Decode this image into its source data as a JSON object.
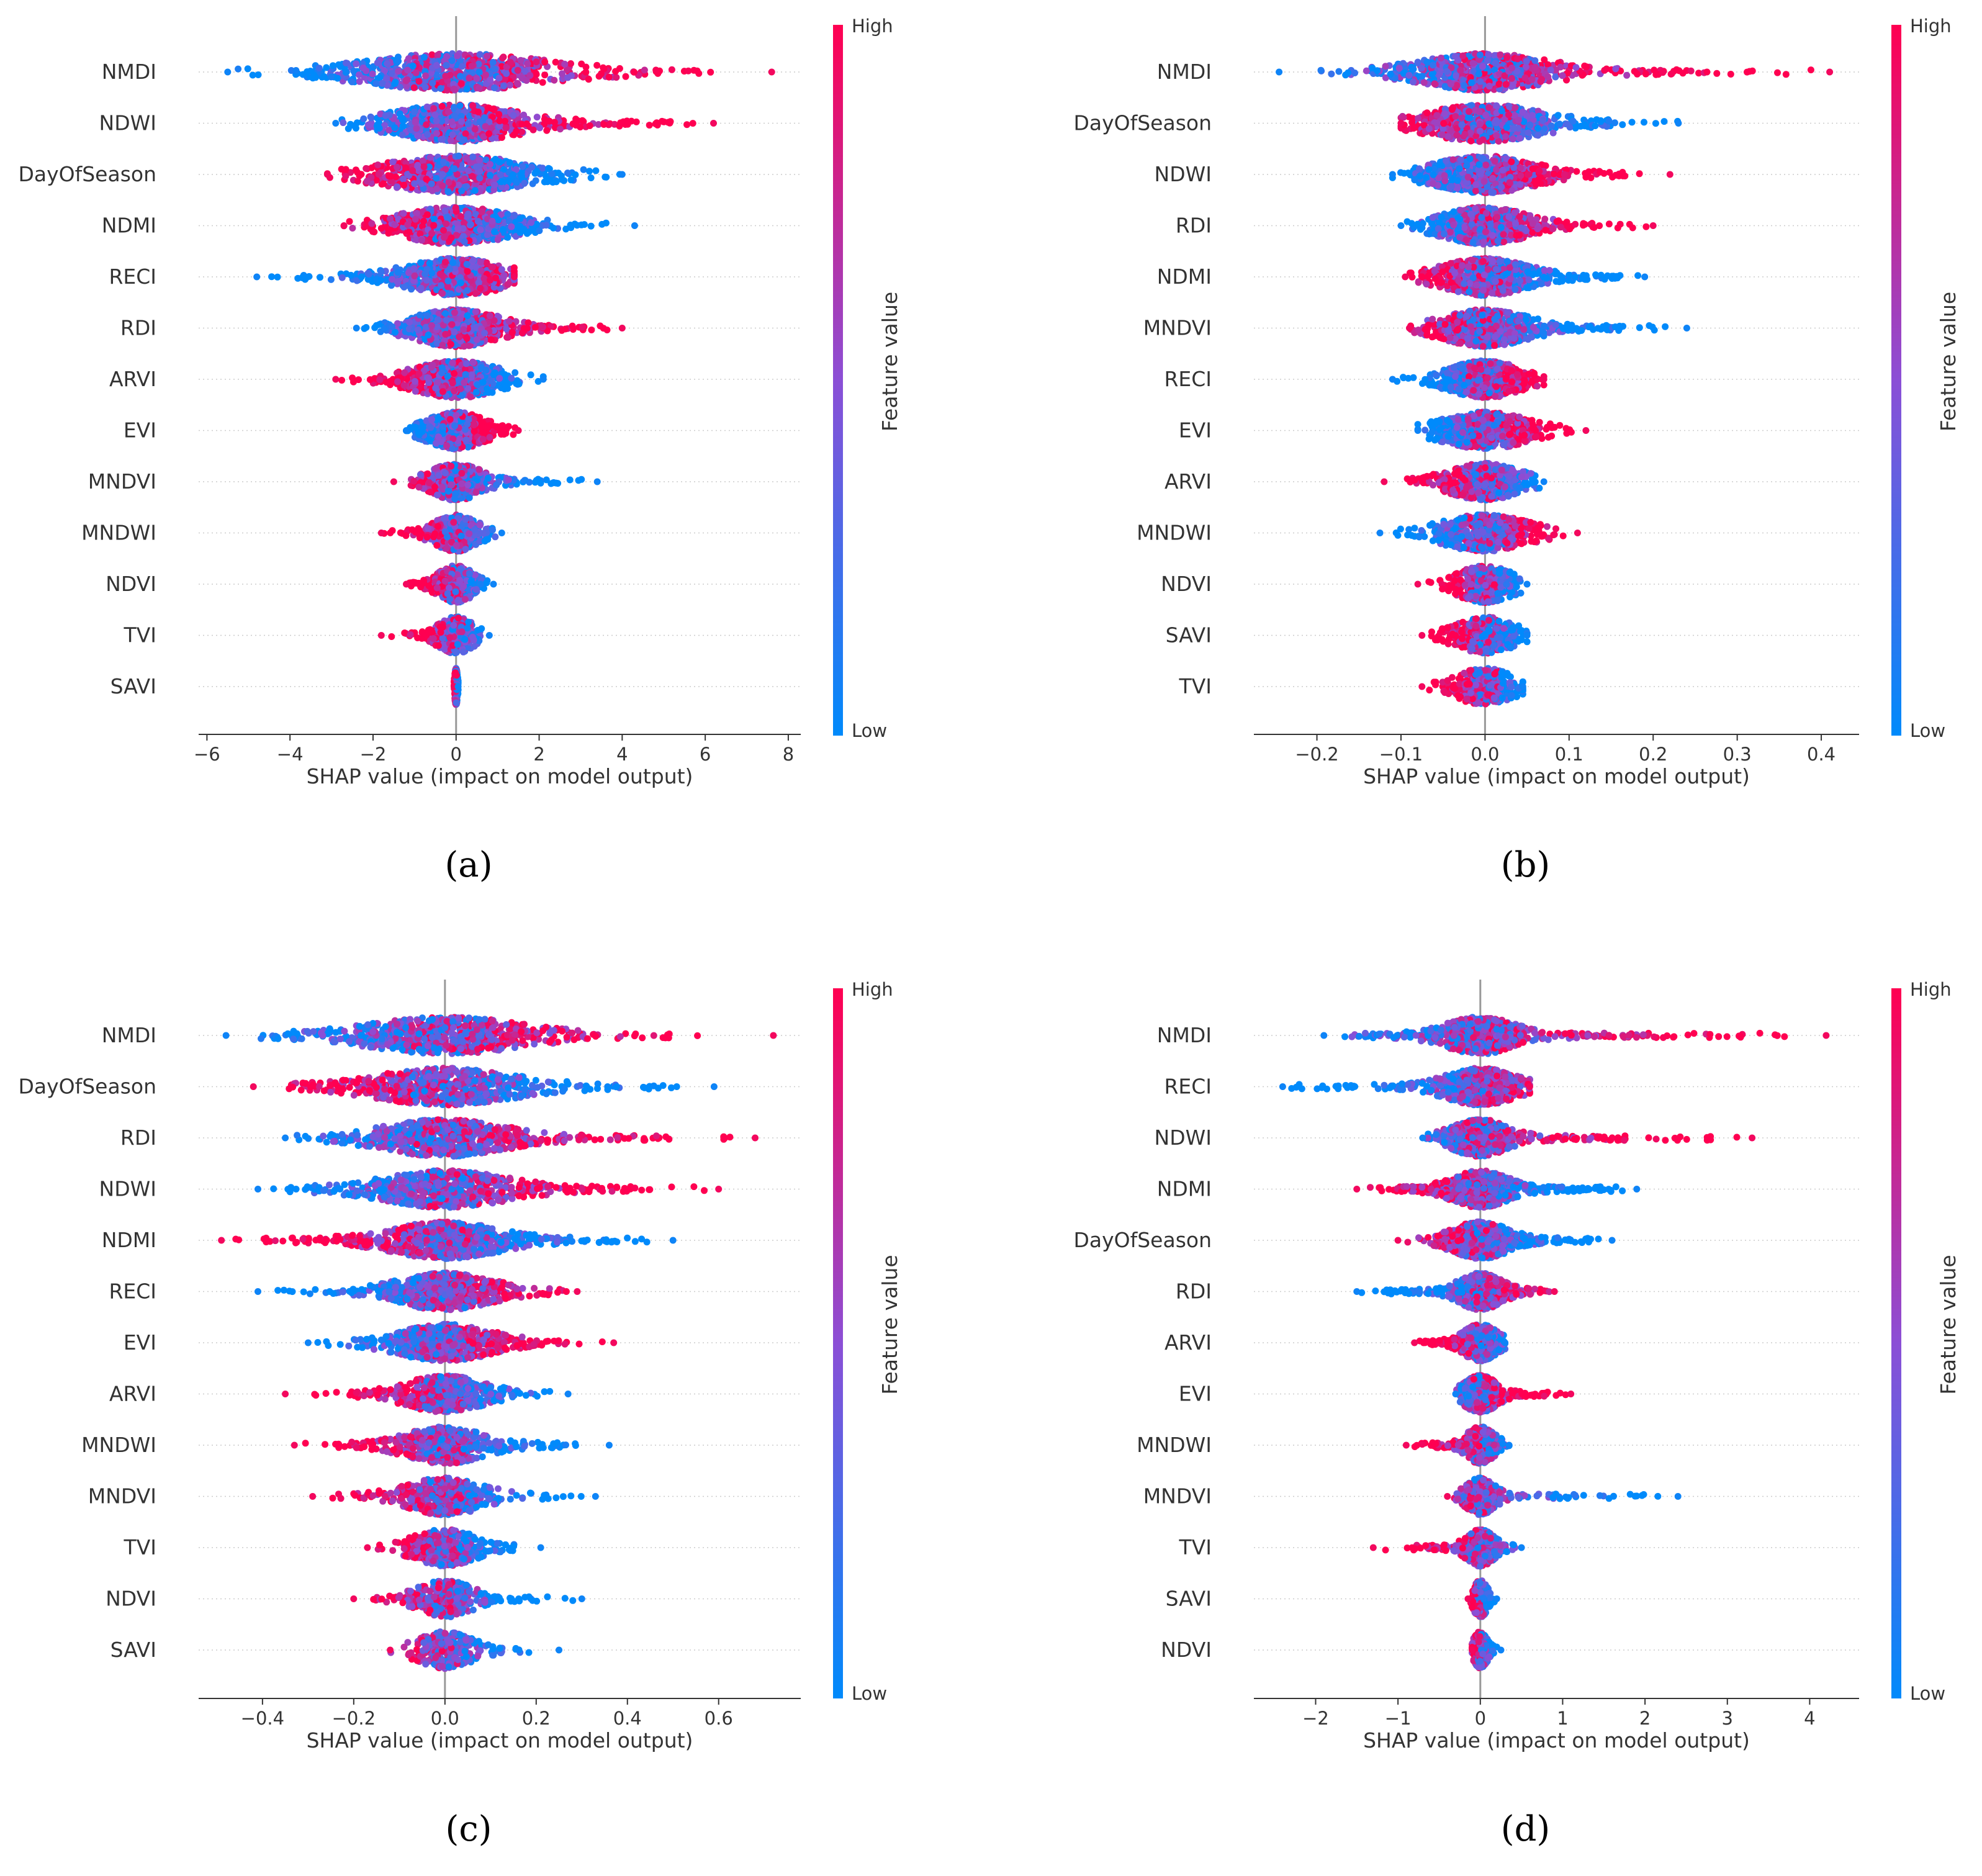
{
  "chart_data": [
    {
      "type": "scatter",
      "subtype": "shap-beeswarm",
      "panel_label": "(a)",
      "xlabel": "SHAP value (impact on model output)",
      "xlim": [
        -6.2,
        8.3
      ],
      "xticks": [
        -6,
        -4,
        -2,
        0,
        2,
        4,
        6,
        8
      ],
      "tick_labels": [
        "−6",
        "−4",
        "−2",
        "0",
        "2",
        "4",
        "6",
        "8"
      ],
      "colorbar": {
        "label": "Feature value",
        "high": "High",
        "low": "Low"
      },
      "features": [
        {
          "name": "NMDI",
          "min": -5.5,
          "max": 7.6,
          "spread": 1.3,
          "low_side": -1
        },
        {
          "name": "NDWI",
          "min": -2.9,
          "max": 6.2,
          "spread": 0.9,
          "low_side": -1
        },
        {
          "name": "DayOfSeason",
          "min": -3.1,
          "max": 4.0,
          "spread": 1.0,
          "low_side": 1
        },
        {
          "name": "NDMI",
          "min": -2.7,
          "max": 4.3,
          "spread": 0.8,
          "low_side": 1
        },
        {
          "name": "RECI",
          "min": -4.8,
          "max": 1.4,
          "spread": 0.7,
          "low_side": -1
        },
        {
          "name": "RDI",
          "min": -2.4,
          "max": 4.0,
          "spread": 0.6,
          "low_side": -1
        },
        {
          "name": "ARVI",
          "min": -2.9,
          "max": 2.1,
          "spread": 0.6,
          "low_side": 1
        },
        {
          "name": "EVI",
          "min": -1.2,
          "max": 1.5,
          "spread": 0.4,
          "low_side": -1
        },
        {
          "name": "MNDVI",
          "min": -1.5,
          "max": 3.4,
          "spread": 0.35,
          "low_side": 1
        },
        {
          "name": "MNDWI",
          "min": -1.8,
          "max": 1.1,
          "spread": 0.3,
          "low_side": 1
        },
        {
          "name": "NDVI",
          "min": -1.2,
          "max": 0.9,
          "spread": 0.25,
          "low_side": 1
        },
        {
          "name": "TVI",
          "min": -1.8,
          "max": 0.8,
          "spread": 0.25,
          "low_side": 1
        },
        {
          "name": "SAVI",
          "min": -0.05,
          "max": 0.05,
          "spread": 0.02,
          "low_side": 1
        }
      ]
    },
    {
      "type": "scatter",
      "subtype": "shap-beeswarm",
      "panel_label": "(b)",
      "xlabel": "SHAP value (impact on model output)",
      "xlim": [
        -0.275,
        0.445
      ],
      "xticks": [
        -0.2,
        -0.1,
        0.0,
        0.1,
        0.2,
        0.3,
        0.4
      ],
      "tick_labels": [
        "−0.2",
        "−0.1",
        "0.0",
        "0.1",
        "0.2",
        "0.3",
        "0.4"
      ],
      "colorbar": {
        "label": "Feature value",
        "high": "High",
        "low": "Low"
      },
      "features": [
        {
          "name": "NMDI",
          "min": -0.245,
          "max": 0.41,
          "spread": 0.045,
          "low_side": -1
        },
        {
          "name": "DayOfSeason",
          "min": -0.1,
          "max": 0.23,
          "spread": 0.04,
          "low_side": 1
        },
        {
          "name": "NDWI",
          "min": -0.11,
          "max": 0.22,
          "spread": 0.035,
          "low_side": -1
        },
        {
          "name": "RDI",
          "min": -0.1,
          "max": 0.2,
          "spread": 0.03,
          "low_side": -1
        },
        {
          "name": "NDMI",
          "min": -0.095,
          "max": 0.19,
          "spread": 0.03,
          "low_side": 1
        },
        {
          "name": "MNDVI",
          "min": -0.09,
          "max": 0.24,
          "spread": 0.03,
          "low_side": 1
        },
        {
          "name": "RECI",
          "min": -0.11,
          "max": 0.07,
          "spread": 0.025,
          "low_side": -1
        },
        {
          "name": "EVI",
          "min": -0.08,
          "max": 0.12,
          "spread": 0.03,
          "low_side": -1
        },
        {
          "name": "ARVI",
          "min": -0.12,
          "max": 0.07,
          "spread": 0.025,
          "low_side": 1
        },
        {
          "name": "MNDWI",
          "min": -0.125,
          "max": 0.11,
          "spread": 0.03,
          "low_side": -1
        },
        {
          "name": "NDVI",
          "min": -0.08,
          "max": 0.05,
          "spread": 0.02,
          "low_side": 1
        },
        {
          "name": "SAVI",
          "min": -0.075,
          "max": 0.05,
          "spread": 0.02,
          "low_side": 1
        },
        {
          "name": "TVI",
          "min": -0.075,
          "max": 0.045,
          "spread": 0.02,
          "low_side": 1
        }
      ]
    },
    {
      "type": "scatter",
      "subtype": "shap-beeswarm",
      "panel_label": "(c)",
      "xlabel": "SHAP value (impact on model output)",
      "xlim": [
        -0.54,
        0.78
      ],
      "xticks": [
        -0.4,
        -0.2,
        0.0,
        0.2,
        0.4,
        0.6
      ],
      "tick_labels": [
        "−0.4",
        "−0.2",
        "0.0",
        "0.2",
        "0.4",
        "0.6"
      ],
      "colorbar": {
        "label": "Feature value",
        "high": "High",
        "low": "Low"
      },
      "features": [
        {
          "name": "NMDI",
          "min": -0.48,
          "max": 0.72,
          "spread": 0.1,
          "low_side": -1
        },
        {
          "name": "DayOfSeason",
          "min": -0.42,
          "max": 0.59,
          "spread": 0.09,
          "low_side": 1
        },
        {
          "name": "RDI",
          "min": -0.35,
          "max": 0.68,
          "spread": 0.08,
          "low_side": -1
        },
        {
          "name": "NDWI",
          "min": -0.41,
          "max": 0.6,
          "spread": 0.08,
          "low_side": -1
        },
        {
          "name": "NDMI",
          "min": -0.49,
          "max": 0.5,
          "spread": 0.07,
          "low_side": 1
        },
        {
          "name": "RECI",
          "min": -0.41,
          "max": 0.29,
          "spread": 0.06,
          "low_side": -1
        },
        {
          "name": "EVI",
          "min": -0.3,
          "max": 0.37,
          "spread": 0.06,
          "low_side": -1
        },
        {
          "name": "ARVI",
          "min": -0.35,
          "max": 0.27,
          "spread": 0.05,
          "low_side": 1
        },
        {
          "name": "MNDWI",
          "min": -0.33,
          "max": 0.36,
          "spread": 0.05,
          "low_side": 1
        },
        {
          "name": "MNDVI",
          "min": -0.29,
          "max": 0.33,
          "spread": 0.05,
          "low_side": 1
        },
        {
          "name": "TVI",
          "min": -0.17,
          "max": 0.21,
          "spread": 0.04,
          "low_side": 1
        },
        {
          "name": "NDVI",
          "min": -0.2,
          "max": 0.3,
          "spread": 0.035,
          "low_side": 1
        },
        {
          "name": "SAVI",
          "min": -0.12,
          "max": 0.25,
          "spread": 0.035,
          "low_side": 1
        }
      ]
    },
    {
      "type": "scatter",
      "subtype": "shap-beeswarm",
      "panel_label": "(d)",
      "xlabel": "SHAP value (impact on model output)",
      "xlim": [
        -2.75,
        4.6
      ],
      "xticks": [
        -2,
        -1,
        0,
        1,
        2,
        3,
        4
      ],
      "tick_labels": [
        "−2",
        "−1",
        "0",
        "1",
        "2",
        "3",
        "4"
      ],
      "colorbar": {
        "label": "Feature value",
        "high": "High",
        "low": "Low"
      },
      "features": [
        {
          "name": "NMDI",
          "min": -1.9,
          "max": 4.2,
          "spread": 0.25,
          "low_side": -1
        },
        {
          "name": "RECI",
          "min": -2.4,
          "max": 0.6,
          "spread": 0.25,
          "low_side": -1
        },
        {
          "name": "NDWI",
          "min": -0.7,
          "max": 3.3,
          "spread": 0.2,
          "low_side": -1
        },
        {
          "name": "NDMI",
          "min": -1.5,
          "max": 1.9,
          "spread": 0.2,
          "low_side": 1
        },
        {
          "name": "DayOfSeason",
          "min": -1.0,
          "max": 1.6,
          "spread": 0.2,
          "low_side": 1
        },
        {
          "name": "RDI",
          "min": -1.5,
          "max": 0.9,
          "spread": 0.15,
          "low_side": -1
        },
        {
          "name": "ARVI",
          "min": -0.8,
          "max": 0.3,
          "spread": 0.12,
          "low_side": 1
        },
        {
          "name": "EVI",
          "min": -0.3,
          "max": 1.1,
          "spread": 0.12,
          "low_side": -1
        },
        {
          "name": "MNDWI",
          "min": -0.9,
          "max": 0.35,
          "spread": 0.1,
          "low_side": 1
        },
        {
          "name": "MNDVI",
          "min": -0.4,
          "max": 2.4,
          "spread": 0.1,
          "low_side": 1
        },
        {
          "name": "TVI",
          "min": -1.3,
          "max": 0.5,
          "spread": 0.1,
          "low_side": 1
        },
        {
          "name": "SAVI",
          "min": -0.15,
          "max": 0.2,
          "spread": 0.05,
          "low_side": 1
        },
        {
          "name": "NDVI",
          "min": -0.1,
          "max": 0.25,
          "spread": 0.05,
          "low_side": 1
        }
      ]
    }
  ]
}
